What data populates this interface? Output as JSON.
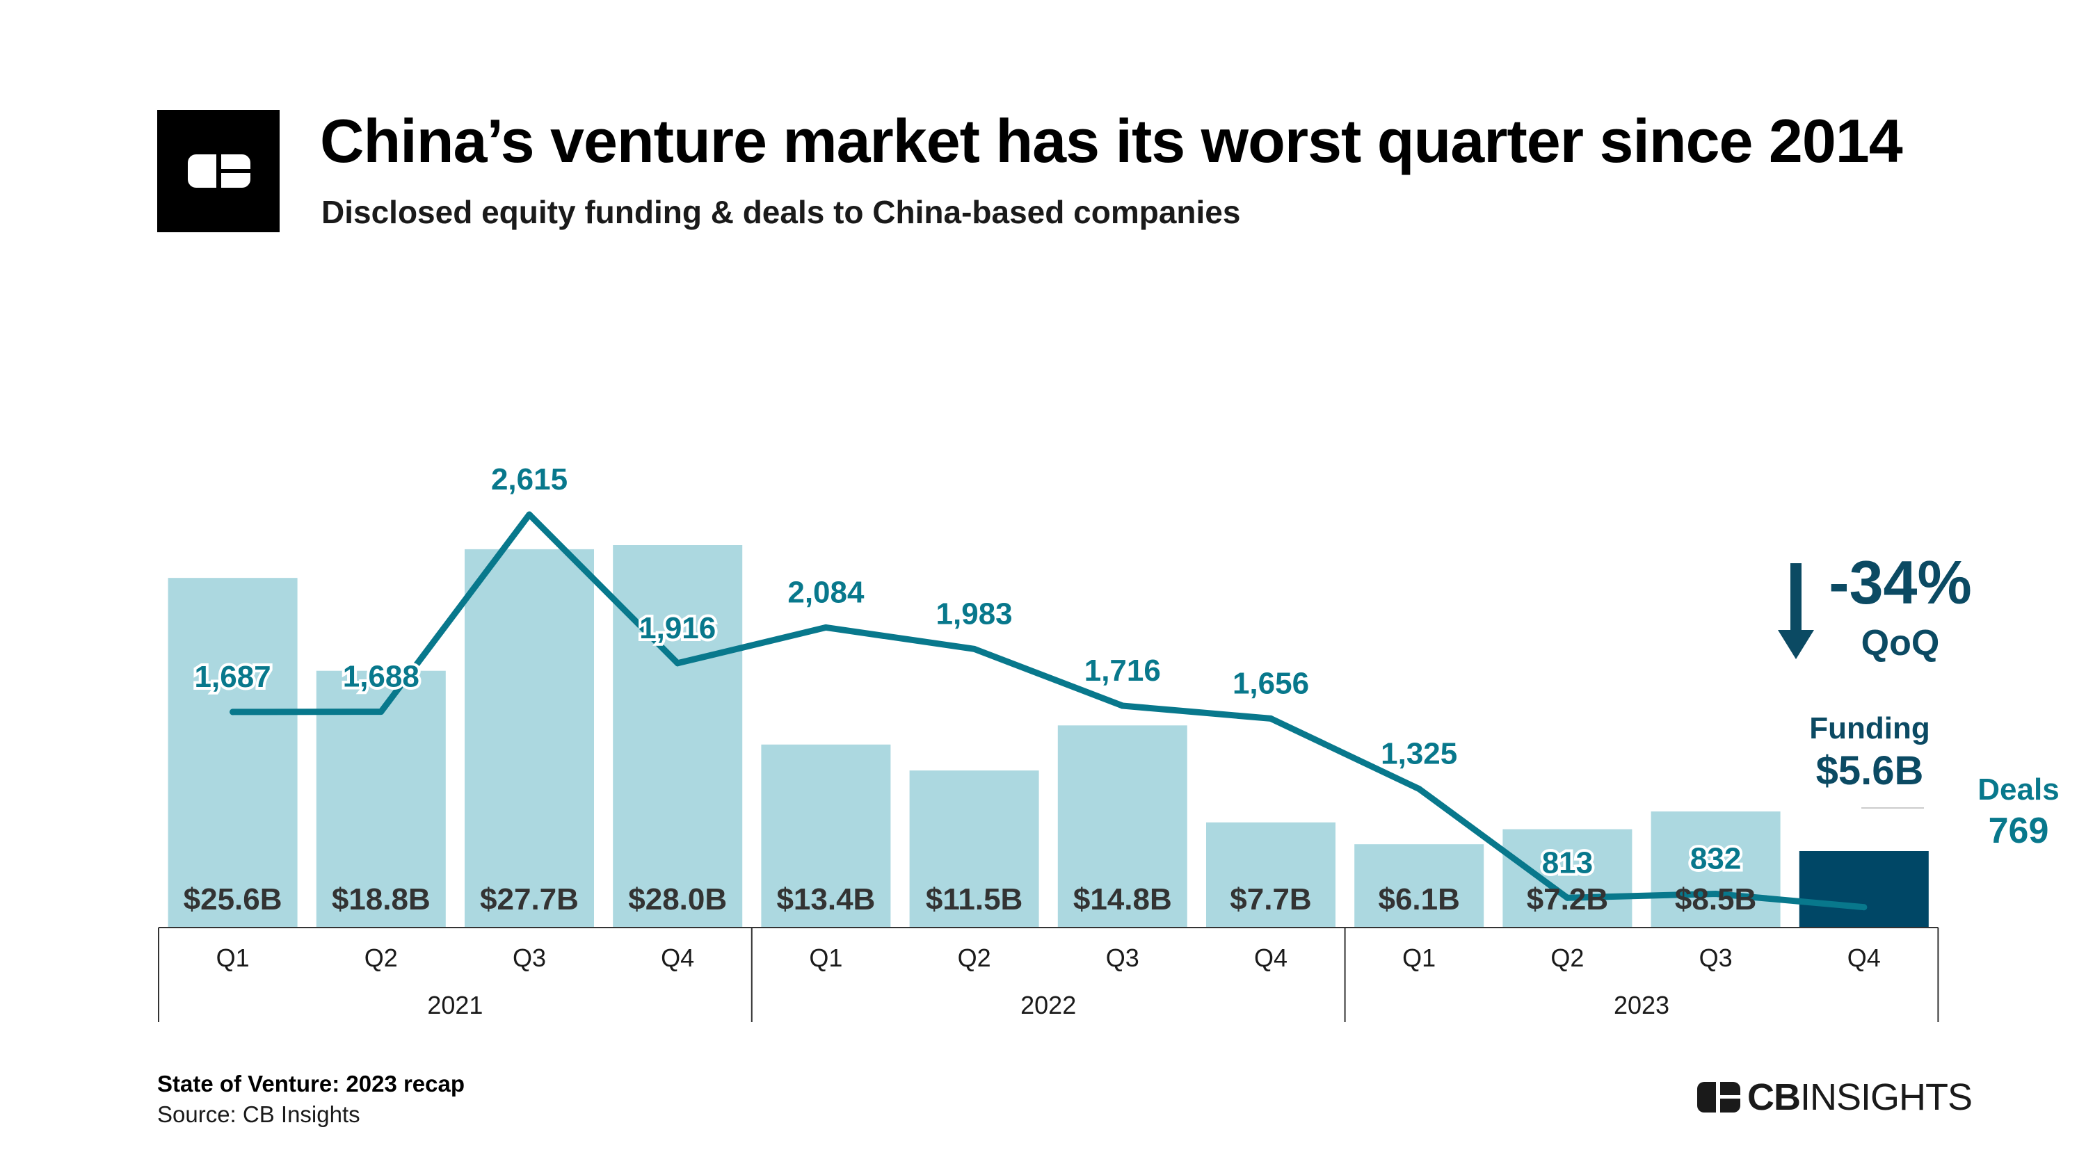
{
  "header": {
    "title": "China’s venture market has its worst quarter since 2014",
    "subtitle": "Disclosed equity funding & deals to China-based companies"
  },
  "footer": {
    "title": "State of Venture: 2023 recap",
    "source": "Source: CB Insights",
    "brand_bold": "CB",
    "brand_light": "INSIGHTS"
  },
  "callouts": {
    "change": "-34%",
    "change_period": "QoQ",
    "funding_label": "Funding",
    "funding_value": "$5.6B",
    "deals_label": "Deals",
    "deals_value": "769"
  },
  "colors": {
    "bar": "#acd8e0",
    "bar_highlight": "#004766",
    "line": "#08788c",
    "deal_label": "#08788c",
    "funding_label": "#333333",
    "callout": "#0b4a63"
  },
  "chart_data": {
    "type": "bar",
    "categories": [
      "Q1",
      "Q2",
      "Q3",
      "Q4",
      "Q1",
      "Q2",
      "Q3",
      "Q4",
      "Q1",
      "Q2",
      "Q3",
      "Q4"
    ],
    "groups": [
      {
        "label": "2021",
        "count": 4
      },
      {
        "label": "2022",
        "count": 4
      },
      {
        "label": "2023",
        "count": 4
      }
    ],
    "series": [
      {
        "name": "Funding",
        "unit": "$B",
        "values": [
          25.6,
          18.8,
          27.7,
          28.0,
          13.4,
          11.5,
          14.8,
          7.7,
          6.1,
          7.2,
          8.5,
          5.6
        ],
        "labels": [
          "$25.6B",
          "$18.8B",
          "$27.7B",
          "$28.0B",
          "$13.4B",
          "$11.5B",
          "$14.8B",
          "$7.7B",
          "$6.1B",
          "$7.2B",
          "$8.5B",
          ""
        ]
      },
      {
        "name": "Deals",
        "type": "line",
        "values": [
          1687,
          1688,
          2615,
          1916,
          2084,
          1983,
          1716,
          1656,
          1325,
          813,
          832,
          769
        ],
        "labels": [
          "1,687",
          "1,688",
          "2,615",
          "1,916",
          "2,084",
          "1,983",
          "1,716",
          "1,656",
          "1,325",
          "813",
          "832",
          ""
        ]
      }
    ],
    "highlight_index": 11
  }
}
